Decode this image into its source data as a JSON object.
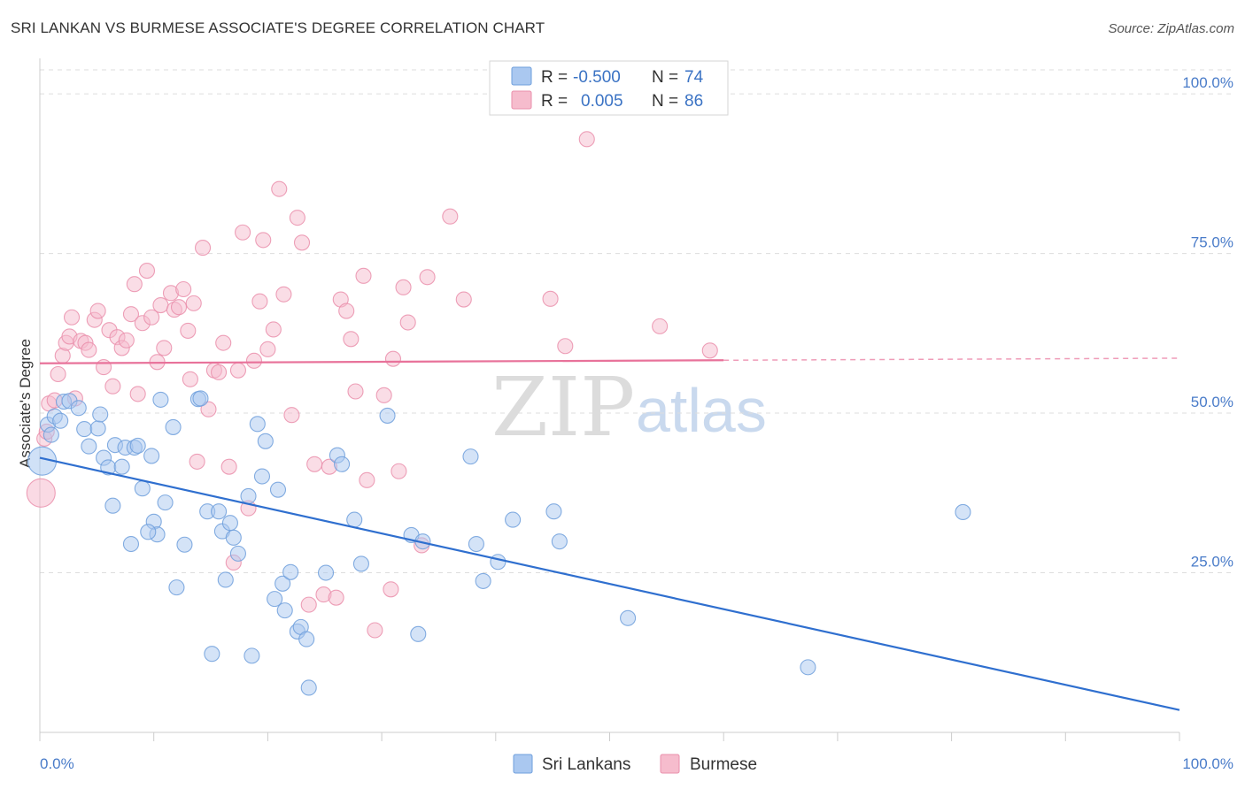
{
  "header": {
    "title": "SRI LANKAN VS BURMESE ASSOCIATE'S DEGREE CORRELATION CHART",
    "source": "Source: ZipAtlas.com"
  },
  "watermark": {
    "zip": "ZIP",
    "atlas": "atlas"
  },
  "legend_top": {
    "rows": [
      {
        "r_label": "R =",
        "r_value": "-0.500",
        "n_label": "N =",
        "n_value": "74"
      },
      {
        "r_label": "R =",
        "r_value": "0.005",
        "n_label": "N =",
        "n_value": "86"
      }
    ]
  },
  "legend_bottom": [
    "Sri Lankans",
    "Burmese"
  ],
  "colors": {
    "blue_fill": "#aac8f0",
    "blue_stroke": "#6f9fdc",
    "blue_line": "#2f6fcf",
    "pink_fill": "#f6bccd",
    "pink_stroke": "#ea8fac",
    "pink_line": "#e8729a",
    "tick_label": "#4a7cc9",
    "grid": "#dddddd"
  },
  "chart_data": {
    "type": "scatter",
    "title": "SRI LANKAN VS BURMESE ASSOCIATE'S DEGREE CORRELATION CHART",
    "xlabel": "",
    "ylabel": "Associate's Degree",
    "xlim": [
      0,
      100
    ],
    "ylim": [
      0,
      105
    ],
    "x_tick_labels": [
      "0.0%",
      "100.0%"
    ],
    "y_tick_labels": [
      "25.0%",
      "50.0%",
      "75.0%",
      "100.0%"
    ],
    "y_ticks": [
      25,
      50,
      75,
      100
    ],
    "grid": true,
    "legend_position": "top-center",
    "series": [
      {
        "name": "Sri Lankans",
        "r": -0.5,
        "n": 74,
        "trend": {
          "x": [
            0,
            100
          ],
          "y": [
            43.0,
            3.5
          ],
          "dashed_from": null
        },
        "points": [
          [
            0.2,
            42.5
          ],
          [
            0.7,
            48.2
          ],
          [
            1.3,
            49.5
          ],
          [
            1.8,
            48.8
          ],
          [
            2.1,
            51.8
          ],
          [
            2.6,
            51.9
          ],
          [
            3.4,
            50.8
          ],
          [
            3.9,
            47.5
          ],
          [
            4.3,
            44.8
          ],
          [
            5.1,
            47.6
          ],
          [
            5.3,
            49.8
          ],
          [
            5.6,
            43.0
          ],
          [
            6.0,
            41.5
          ],
          [
            6.4,
            35.5
          ],
          [
            6.6,
            45.0
          ],
          [
            7.2,
            41.6
          ],
          [
            7.5,
            44.6
          ],
          [
            8.0,
            29.5
          ],
          [
            8.3,
            44.6
          ],
          [
            8.6,
            44.9
          ],
          [
            9.0,
            38.2
          ],
          [
            9.8,
            43.3
          ],
          [
            10.0,
            33.0
          ],
          [
            10.3,
            31.0
          ],
          [
            10.6,
            52.1
          ],
          [
            11.0,
            36.0
          ],
          [
            11.7,
            47.8
          ],
          [
            12.0,
            22.7
          ],
          [
            12.7,
            29.4
          ],
          [
            13.9,
            52.2
          ],
          [
            14.1,
            52.3
          ],
          [
            14.7,
            34.6
          ],
          [
            15.1,
            12.3
          ],
          [
            15.7,
            34.6
          ],
          [
            16.0,
            31.5
          ],
          [
            16.3,
            23.9
          ],
          [
            16.7,
            32.8
          ],
          [
            17.0,
            30.5
          ],
          [
            17.4,
            28.0
          ],
          [
            18.3,
            37.0
          ],
          [
            18.6,
            12.0
          ],
          [
            19.1,
            48.3
          ],
          [
            19.5,
            40.1
          ],
          [
            19.8,
            45.6
          ],
          [
            20.6,
            20.9
          ],
          [
            20.9,
            38.0
          ],
          [
            21.3,
            23.3
          ],
          [
            21.5,
            19.1
          ],
          [
            22.0,
            25.1
          ],
          [
            22.6,
            15.8
          ],
          [
            22.9,
            16.5
          ],
          [
            23.4,
            14.6
          ],
          [
            23.6,
            7.0
          ],
          [
            25.1,
            25.0
          ],
          [
            26.1,
            43.4
          ],
          [
            26.5,
            42.0
          ],
          [
            27.6,
            33.3
          ],
          [
            28.2,
            26.4
          ],
          [
            30.5,
            49.6
          ],
          [
            32.6,
            30.9
          ],
          [
            33.2,
            15.4
          ],
          [
            33.6,
            29.9
          ],
          [
            37.8,
            43.2
          ],
          [
            38.3,
            29.5
          ],
          [
            38.9,
            23.7
          ],
          [
            40.2,
            26.7
          ],
          [
            41.5,
            33.3
          ],
          [
            45.1,
            34.6
          ],
          [
            45.6,
            29.9
          ],
          [
            51.6,
            17.9
          ],
          [
            67.4,
            10.2
          ],
          [
            81.0,
            34.5
          ],
          [
            1.0,
            46.6
          ],
          [
            9.5,
            31.4
          ]
        ]
      },
      {
        "name": "Burmese",
        "r": 0.005,
        "n": 86,
        "trend": {
          "x": [
            0,
            100
          ],
          "y": [
            57.8,
            58.6
          ],
          "dashed_from": 60
        },
        "points": [
          [
            0.1,
            37.5
          ],
          [
            0.4,
            46.0
          ],
          [
            0.8,
            51.5
          ],
          [
            1.3,
            52.0
          ],
          [
            1.6,
            56.1
          ],
          [
            2.0,
            59.0
          ],
          [
            2.3,
            61.0
          ],
          [
            2.6,
            62.0
          ],
          [
            2.8,
            65.0
          ],
          [
            3.1,
            52.3
          ],
          [
            3.6,
            61.3
          ],
          [
            4.0,
            61.0
          ],
          [
            4.3,
            59.9
          ],
          [
            4.8,
            64.6
          ],
          [
            5.1,
            66.0
          ],
          [
            5.6,
            57.2
          ],
          [
            6.1,
            63.0
          ],
          [
            6.4,
            54.2
          ],
          [
            6.8,
            61.9
          ],
          [
            7.2,
            60.2
          ],
          [
            7.6,
            61.4
          ],
          [
            8.0,
            65.5
          ],
          [
            8.3,
            70.2
          ],
          [
            8.6,
            53.0
          ],
          [
            9.0,
            64.1
          ],
          [
            9.4,
            72.3
          ],
          [
            9.8,
            65.0
          ],
          [
            10.3,
            58.0
          ],
          [
            10.6,
            66.9
          ],
          [
            10.9,
            60.2
          ],
          [
            11.5,
            68.8
          ],
          [
            11.8,
            66.2
          ],
          [
            12.2,
            66.6
          ],
          [
            12.6,
            69.4
          ],
          [
            13.0,
            62.9
          ],
          [
            13.2,
            55.3
          ],
          [
            13.5,
            67.2
          ],
          [
            13.8,
            42.4
          ],
          [
            14.3,
            75.9
          ],
          [
            14.8,
            50.6
          ],
          [
            15.3,
            56.7
          ],
          [
            15.7,
            56.4
          ],
          [
            16.1,
            61.0
          ],
          [
            16.6,
            41.6
          ],
          [
            17.0,
            26.6
          ],
          [
            17.4,
            56.7
          ],
          [
            17.8,
            78.3
          ],
          [
            18.3,
            35.1
          ],
          [
            18.8,
            58.2
          ],
          [
            19.3,
            67.5
          ],
          [
            19.6,
            77.1
          ],
          [
            20.0,
            60.0
          ],
          [
            20.5,
            63.1
          ],
          [
            21.0,
            85.1
          ],
          [
            21.4,
            68.6
          ],
          [
            22.1,
            49.7
          ],
          [
            22.6,
            80.6
          ],
          [
            23.0,
            76.7
          ],
          [
            23.6,
            20.0
          ],
          [
            24.1,
            42.0
          ],
          [
            24.9,
            21.6
          ],
          [
            25.4,
            41.6
          ],
          [
            26.0,
            21.1
          ],
          [
            26.4,
            67.8
          ],
          [
            26.9,
            66.0
          ],
          [
            27.3,
            61.6
          ],
          [
            27.7,
            53.4
          ],
          [
            28.4,
            71.5
          ],
          [
            28.7,
            39.5
          ],
          [
            29.4,
            16.0
          ],
          [
            30.2,
            52.8
          ],
          [
            30.8,
            22.4
          ],
          [
            31.0,
            58.5
          ],
          [
            31.5,
            40.9
          ],
          [
            31.9,
            69.7
          ],
          [
            32.3,
            64.2
          ],
          [
            33.5,
            29.3
          ],
          [
            34.0,
            71.3
          ],
          [
            36.0,
            80.8
          ],
          [
            37.2,
            67.8
          ],
          [
            44.8,
            67.9
          ],
          [
            46.1,
            60.5
          ],
          [
            48.0,
            92.9
          ],
          [
            54.4,
            63.6
          ],
          [
            58.8,
            59.8
          ],
          [
            0.6,
            47.1
          ]
        ]
      }
    ]
  }
}
